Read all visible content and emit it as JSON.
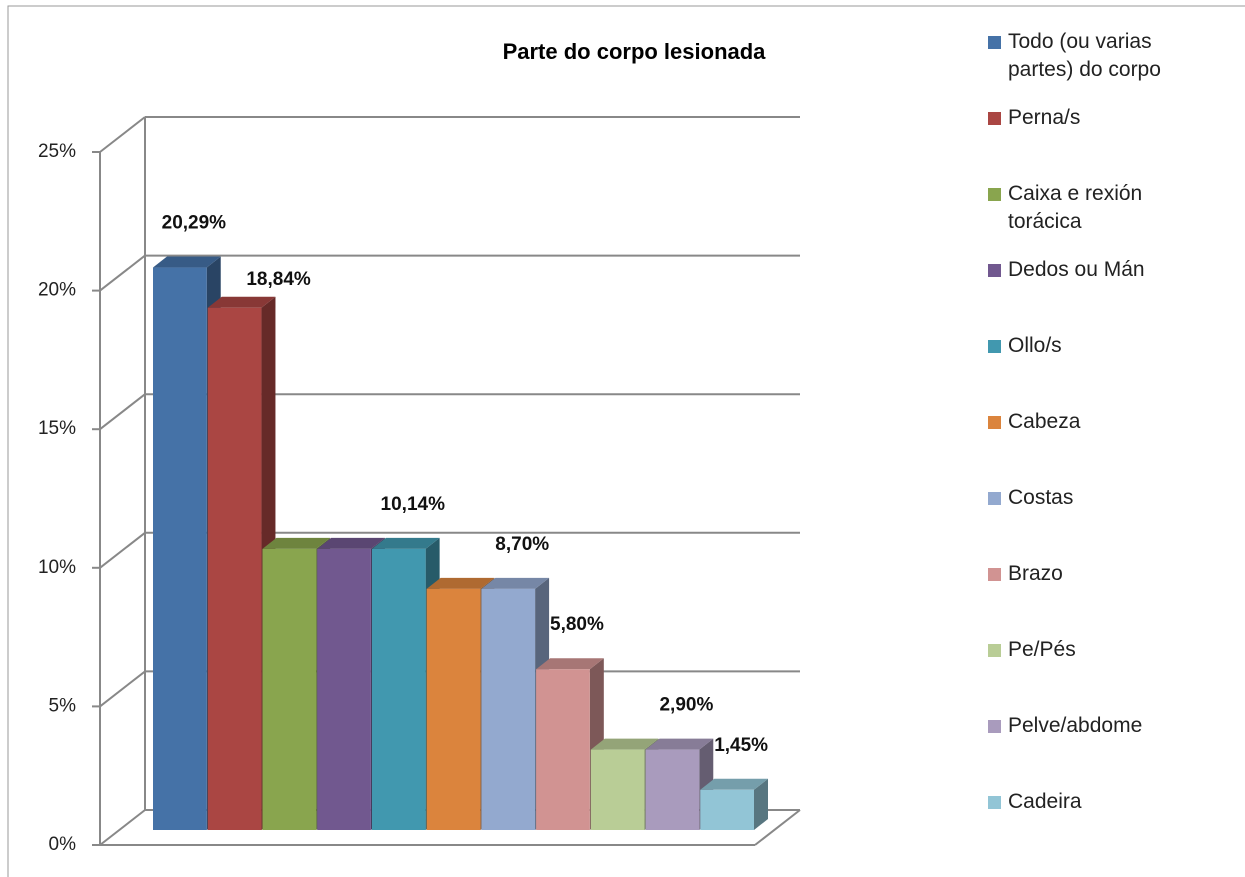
{
  "chart_data": {
    "type": "bar3d",
    "title": "Parte do corpo lesionada",
    "categories": [
      "Todo (ou varias partes) do corpo",
      "Perna/s",
      "Caixa e rexión torácica",
      "Dedos ou Mán",
      "Ollo/s",
      "Cabeza",
      "Costas",
      "Brazo",
      "Pe/Pés",
      "Pelve/abdome",
      "Cadeira"
    ],
    "values": [
      20.29,
      18.84,
      10.14,
      10.14,
      10.14,
      8.7,
      8.7,
      5.8,
      2.9,
      2.9,
      1.45
    ],
    "value_labels": [
      "20,29%",
      "18,84%",
      null,
      null,
      "10,14%",
      null,
      "8,70%",
      "5,80%",
      null,
      "2,90%",
      "1,45%"
    ],
    "colors": [
      "#4572a7",
      "#aa4643",
      "#89a54e",
      "#71588f",
      "#4198af",
      "#db843d",
      "#93a9cf",
      "#d19392",
      "#b9cd96",
      "#a99bbd",
      "#92c5d6"
    ],
    "ylim": [
      0,
      25
    ],
    "yticks": [
      {
        "value": 0,
        "label": "0%"
      },
      {
        "value": 5,
        "label": "5%"
      },
      {
        "value": 10,
        "label": "10%"
      },
      {
        "value": 15,
        "label": "15%"
      },
      {
        "value": 20,
        "label": "20%"
      },
      {
        "value": 25,
        "label": "25%"
      }
    ],
    "grid": true,
    "legend": "right"
  }
}
